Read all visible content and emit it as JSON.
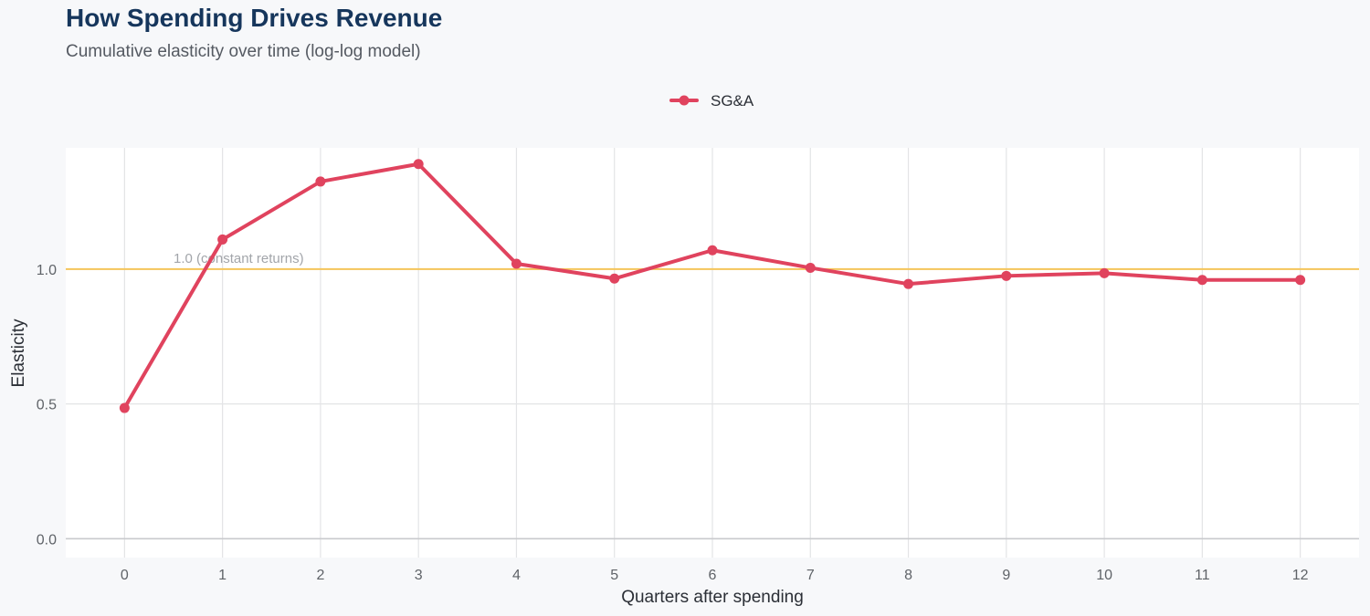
{
  "chart_data": {
    "type": "line",
    "title": "How Spending Drives Revenue",
    "subtitle": "Cumulative elasticity over time (log-log model)",
    "xlabel": "Quarters after spending",
    "ylabel": "Elasticity",
    "x": [
      0,
      1,
      2,
      3,
      4,
      5,
      6,
      7,
      8,
      9,
      10,
      11,
      12
    ],
    "x_tick_labels": [
      "0",
      "1",
      "2",
      "3",
      "4",
      "5",
      "6",
      "7",
      "8",
      "9",
      "10",
      "11",
      "12"
    ],
    "xlim": [
      -0.6,
      12.6
    ],
    "ylim": [
      -0.07,
      1.45
    ],
    "y_ticks": [
      0.0,
      0.5,
      1.0
    ],
    "y_tick_labels": [
      "0.0",
      "0.5",
      "1.0"
    ],
    "grid": true,
    "legend_position": "top-center",
    "series": [
      {
        "name": "SG&A",
        "color": "#e0435e",
        "values": [
          0.485,
          1.11,
          1.325,
          1.39,
          1.02,
          0.965,
          1.07,
          1.005,
          0.945,
          0.975,
          0.985,
          0.96,
          0.96
        ]
      }
    ],
    "reference_line": {
      "y": 1.0,
      "label": "1.0 (constant returns)",
      "color": "#f5c55a",
      "label_x": 0.5
    }
  }
}
